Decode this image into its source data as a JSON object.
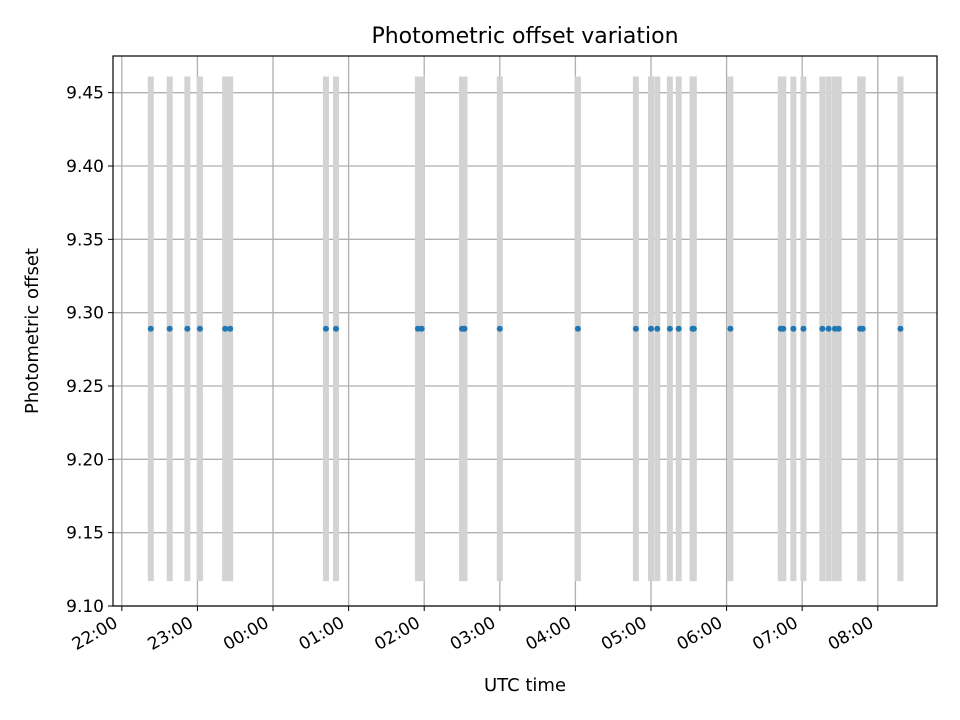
{
  "chart_data": {
    "type": "scatter",
    "title": "Photometric offset variation",
    "xlabel": "UTC time",
    "ylabel": "Photometric offset",
    "ylim": [
      9.1,
      9.475
    ],
    "xlim": [
      "21:53",
      "08:47"
    ],
    "x_tick_labels": [
      "22:00",
      "23:00",
      "00:00",
      "01:00",
      "02:00",
      "03:00",
      "04:00",
      "05:00",
      "06:00",
      "07:00",
      "08:00"
    ],
    "y_tick_labels": [
      "9.10",
      "9.15",
      "9.20",
      "9.25",
      "9.30",
      "9.35",
      "9.40",
      "9.45"
    ],
    "grid": true,
    "marker_color": "#1f77b4",
    "band_color": "#d3d3d3",
    "band_y_range": [
      9.117,
      9.461
    ],
    "series": [
      {
        "x": [
          "22:23",
          "22:38",
          "22:52",
          "23:02",
          "23:22",
          "23:26",
          "00:42",
          "00:50",
          "01:55",
          "01:58",
          "02:30",
          "02:32",
          "03:00",
          "04:02",
          "04:48",
          "05:00",
          "05:05",
          "05:15",
          "05:22",
          "05:33",
          "05:34",
          "06:03",
          "06:43",
          "06:45",
          "06:53",
          "07:01",
          "07:16",
          "07:21",
          "07:26",
          "07:29",
          "07:46",
          "07:48",
          "08:18"
        ],
        "y": [
          9.289,
          9.289,
          9.289,
          9.289,
          9.289,
          9.289,
          9.289,
          9.289,
          9.289,
          9.289,
          9.289,
          9.289,
          9.289,
          9.289,
          9.289,
          9.289,
          9.289,
          9.289,
          9.289,
          9.289,
          9.289,
          9.289,
          9.289,
          9.289,
          9.289,
          9.289,
          9.289,
          9.289,
          9.289,
          9.289,
          9.289,
          9.289,
          9.289
        ]
      }
    ]
  }
}
